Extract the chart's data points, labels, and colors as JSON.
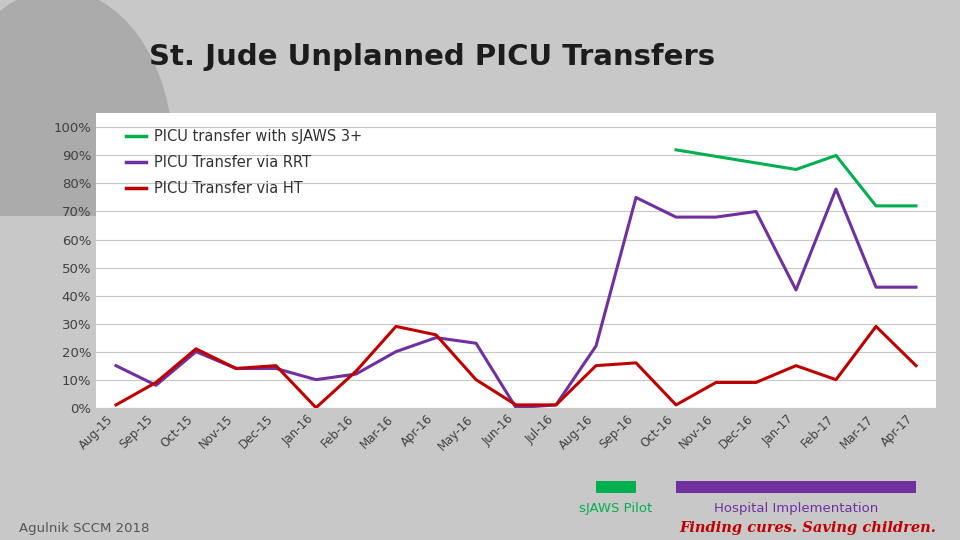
{
  "title": "St. Jude Unplanned PICU Transfers",
  "background_color": "#c8c8c8",
  "chart_bg": "#ffffff",
  "x_labels": [
    "Aug-15",
    "Sep-15",
    "Oct-15",
    "Nov-15",
    "Dec-15",
    "Jan-16",
    "Feb-16",
    "Mar-16",
    "Apr-16",
    "May-16",
    "Jun-16",
    "Jul-16",
    "Aug-16",
    "Sep-16",
    "Oct-16",
    "Nov-16",
    "Dec-16",
    "Jan-17",
    "Feb-17",
    "Mar-17",
    "Apr-17"
  ],
  "green_line": {
    "label": "PICU transfer with sJAWS 3+",
    "color": "#00b050",
    "values": [
      null,
      null,
      null,
      null,
      null,
      null,
      null,
      null,
      null,
      null,
      null,
      null,
      null,
      null,
      92,
      null,
      null,
      85,
      90,
      72,
      72
    ]
  },
  "purple_line": {
    "label": "PICU Transfer via RRT",
    "color": "#7030a0",
    "values": [
      15,
      8,
      20,
      14,
      14,
      10,
      12,
      20,
      25,
      23,
      0,
      1,
      22,
      75,
      68,
      68,
      70,
      42,
      78,
      43,
      43
    ]
  },
  "red_line": {
    "label": "PICU Transfer via HT",
    "color": "#c00000",
    "values": [
      1,
      9,
      21,
      14,
      15,
      0,
      13,
      29,
      26,
      10,
      1,
      1,
      15,
      16,
      1,
      9,
      9,
      15,
      10,
      29,
      15
    ]
  },
  "sjaws_pilot_color": "#00b050",
  "hospital_impl_color": "#7030a0",
  "sjaws_pilot_label": "sJAWS Pilot",
  "hospital_impl_label": "Hospital Implementation",
  "sjaws_pilot_range": [
    12,
    13
  ],
  "hospital_impl_range": [
    14,
    20
  ],
  "footer_left": "Agulnik SCCM 2018",
  "footer_right": "Finding cures. Saving children.",
  "yticks": [
    0,
    10,
    20,
    30,
    40,
    50,
    60,
    70,
    80,
    90,
    100
  ],
  "ylim": [
    0,
    105
  ]
}
